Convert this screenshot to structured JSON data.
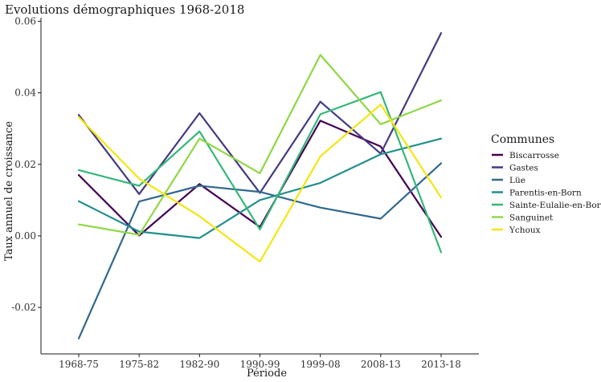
{
  "chart_data": {
    "type": "line",
    "title": "Evolutions démographiques 1968-2018",
    "xlabel": "Période",
    "ylabel": "Taux annuel de croissance",
    "categories": [
      "1968-75",
      "1975-82",
      "1982-90",
      "1990-99",
      "1999-08",
      "2008-13",
      "2013-18"
    ],
    "ylim": [
      -0.033,
      0.061
    ],
    "yticks": [
      -0.02,
      0.0,
      0.02,
      0.04,
      0.06
    ],
    "ytick_labels": [
      "-0.02",
      "0.00",
      "0.02",
      "0.04",
      "0.06"
    ],
    "grid": false,
    "legend": {
      "title": "Communes",
      "placement": "right"
    },
    "series": [
      {
        "name": "Biscarrosse",
        "color": "#440154",
        "values": [
          0.017,
          0.0001,
          0.0145,
          0.0025,
          0.0322,
          0.025,
          -0.0003
        ]
      },
      {
        "name": "Gastes",
        "color": "#443A83",
        "values": [
          0.0338,
          0.0117,
          0.0343,
          0.012,
          0.0375,
          0.023,
          0.0567
        ]
      },
      {
        "name": "Lüe",
        "color": "#31688E",
        "values": [
          -0.0287,
          0.0096,
          0.014,
          0.0123,
          0.0079,
          0.0048,
          0.0203
        ]
      },
      {
        "name": "Parentis-en-Born",
        "color": "#21908C",
        "values": [
          0.0097,
          0.0012,
          -0.0006,
          0.01,
          0.0148,
          0.0228,
          0.0272
        ]
      },
      {
        "name": "Sainte-Eulalie-en-Born",
        "color": "#35B779",
        "values": [
          0.0184,
          0.014,
          0.0292,
          0.0018,
          0.034,
          0.0402,
          -0.0046
        ]
      },
      {
        "name": "Sanguinet",
        "color": "#8FD744",
        "values": [
          0.0032,
          0.0003,
          0.0272,
          0.0175,
          0.0506,
          0.0312,
          0.0379
        ]
      },
      {
        "name": "Ychoux",
        "color": "#F5E50F",
        "values": [
          0.0332,
          0.016,
          0.0055,
          -0.0072,
          0.0222,
          0.0367,
          0.0107
        ]
      }
    ]
  }
}
